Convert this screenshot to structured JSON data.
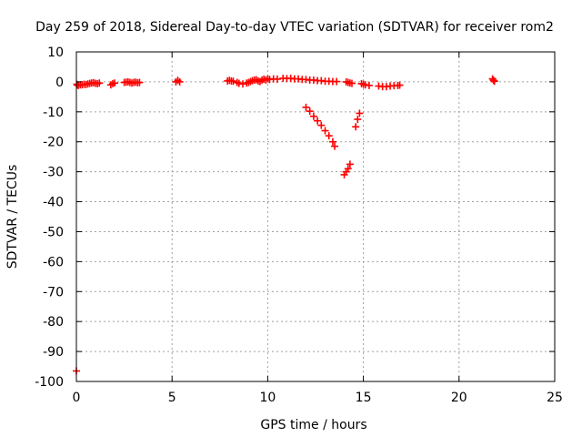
{
  "chart_data": {
    "type": "scatter",
    "title": "Day 259 of 2018, Sidereal Day-to-day VTEC variation (SDTVAR) for receiver rom2",
    "xlabel": "GPS time / hours",
    "ylabel": "SDTVAR / TECUs",
    "xlim": [
      0,
      25
    ],
    "ylim": [
      -100,
      10
    ],
    "xticks": [
      0,
      5,
      10,
      15,
      20,
      25
    ],
    "yticks": [
      10,
      0,
      -10,
      -20,
      -30,
      -40,
      -50,
      -60,
      -70,
      -80,
      -90,
      -100
    ],
    "grid": true,
    "marker": "plus",
    "color": "#ff0000",
    "series": [
      {
        "x": [
          0.0,
          0.02,
          0.05,
          0.1,
          0.2,
          0.3,
          0.4,
          0.5,
          0.6,
          0.7,
          0.8,
          0.9,
          1.0,
          1.1,
          1.2,
          1.8,
          1.9,
          2.0,
          2.5,
          2.6,
          2.7,
          2.8,
          2.9,
          3.0,
          3.1,
          3.2,
          3.3,
          5.2,
          5.3,
          5.4,
          7.9,
          8.0,
          8.1,
          8.2,
          8.4,
          8.5,
          8.7,
          8.9,
          9.0,
          9.1,
          9.2,
          9.3,
          9.4,
          9.5,
          9.6,
          9.7,
          9.8,
          9.9,
          10.0,
          10.1,
          10.3,
          10.5,
          10.8,
          11.0,
          11.2,
          11.4,
          11.6,
          11.8,
          12.0,
          12.2,
          12.4,
          12.6,
          12.8,
          13.0,
          13.2,
          13.4,
          13.6,
          12.0,
          12.2,
          12.4,
          12.6,
          12.8,
          13.0,
          13.2,
          13.4,
          13.5,
          14.0,
          14.1,
          14.2,
          14.3,
          14.1,
          14.2,
          14.3,
          14.4,
          14.6,
          14.7,
          14.8,
          14.9,
          15.0,
          15.1,
          15.3,
          15.8,
          16.0,
          16.2,
          16.4,
          16.6,
          16.8,
          16.9,
          21.8,
          21.75,
          21.85
        ]
      }
    ],
    "y_values": [
      -96.5,
      -0.8,
      -1.0,
      -1.2,
      -1.0,
      -1.0,
      -0.8,
      -0.9,
      -0.7,
      -0.5,
      -0.4,
      -0.3,
      -0.5,
      -0.6,
      -0.4,
      -1.0,
      -0.6,
      -0.4,
      -0.2,
      -0.1,
      0.0,
      -0.2,
      -0.4,
      -0.2,
      -0.1,
      -0.3,
      -0.2,
      0.0,
      0.5,
      0.0,
      0.3,
      0.5,
      0.3,
      0.2,
      -0.2,
      -0.5,
      -0.7,
      -0.4,
      -0.2,
      0.1,
      0.4,
      0.6,
      0.7,
      0.3,
      0.1,
      0.6,
      0.9,
      0.6,
      1.0,
      0.8,
      1.0,
      0.9,
      1.2,
      1.1,
      1.2,
      1.0,
      1.0,
      0.8,
      0.8,
      0.6,
      0.6,
      0.4,
      0.4,
      0.2,
      0.2,
      0.1,
      0.1,
      -8.5,
      -9.8,
      -11.5,
      -13.0,
      -14.5,
      -16.3,
      -18.0,
      -20.0,
      -21.5,
      -31.0,
      -30.0,
      -29.0,
      -27.5,
      0.0,
      -0.2,
      -0.4,
      -0.5,
      -15.0,
      -12.5,
      -10.5,
      -0.6,
      -0.8,
      -1.0,
      -1.2,
      -1.4,
      -1.6,
      -1.6,
      -1.4,
      -1.3,
      -1.2,
      -1.1,
      0.5,
      1.0,
      0.2
    ]
  },
  "colors": {
    "points": "#ff0000",
    "grid": "#a0a0a0",
    "axis": "#000000"
  }
}
